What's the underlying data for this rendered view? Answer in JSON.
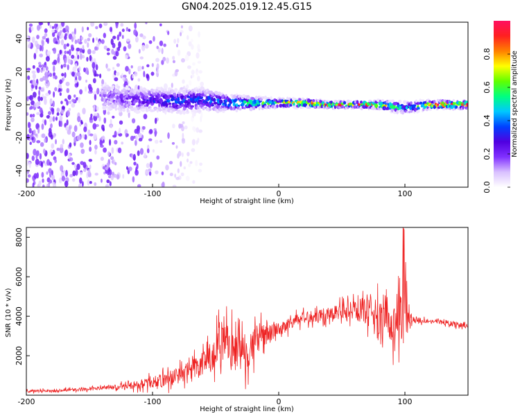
{
  "title": "GN04.2025.019.12.45.G15",
  "chart_data": [
    {
      "type": "heatmap",
      "xlabel": "Height of straight line (km)",
      "ylabel": "Frequency (Hz)",
      "xlim": [
        -200,
        150
      ],
      "ylim": [
        -50,
        50
      ],
      "xticks": [
        -200,
        -100,
        0,
        100
      ],
      "yticks": [
        -40,
        -20,
        0,
        20,
        40
      ],
      "colorbar": {
        "label": "Normalized spectral amplitude",
        "range": [
          0,
          1
        ],
        "ticks": [
          "0.0",
          "0.2",
          "0.4",
          "0.6",
          "0.8"
        ],
        "colors": [
          "#ffffff",
          "#d9c0ff",
          "#8030ff",
          "#5000e0",
          "#0040ff",
          "#00c8ff",
          "#00ff80",
          "#60ff00",
          "#ffff00",
          "#ff8000",
          "#ff2020",
          "#ff1060"
        ]
      },
      "ridge": {
        "x": [
          -140,
          -120,
          -100,
          -80,
          -60,
          -40,
          -20,
          0,
          20,
          40,
          60,
          80,
          100,
          120,
          150
        ],
        "center_hz": [
          5,
          3,
          3,
          2,
          3,
          1,
          1,
          1,
          1,
          0,
          0,
          0,
          -2,
          0,
          0
        ],
        "half_width_hz": [
          8,
          7,
          6,
          6,
          6,
          4,
          3,
          2,
          2,
          1.5,
          1.5,
          2,
          3,
          2,
          2
        ],
        "amplitude": [
          0.15,
          0.2,
          0.3,
          0.35,
          0.35,
          0.45,
          0.6,
          0.7,
          0.8,
          0.9,
          0.85,
          0.85,
          0.4,
          0.8,
          0.95
        ]
      },
      "noise_region_x": [
        -200,
        -100
      ]
    },
    {
      "type": "line",
      "xlabel": "Height of straight line (km)",
      "ylabel": "SNR (10 * v/v)",
      "xlim": [
        -200,
        150
      ],
      "ylim": [
        0,
        8500
      ],
      "xticks": [
        -200,
        -100,
        0,
        100
      ],
      "yticks": [
        2000,
        4000,
        6000,
        8000
      ],
      "color": "#ee2222",
      "series": [
        {
          "x": [
            -200,
            -180,
            -160,
            -140,
            -120,
            -100,
            -90,
            -80,
            -70,
            -60,
            -50,
            -45,
            -40,
            -35,
            -30,
            -25,
            -20,
            -15,
            -10,
            -5,
            0,
            10,
            20,
            30,
            40,
            50,
            60,
            70,
            75,
            80,
            85,
            90,
            95,
            98,
            100,
            102,
            105,
            110,
            120,
            130,
            140,
            150
          ],
          "values": [
            200,
            230,
            280,
            350,
            450,
            650,
            800,
            1000,
            1300,
            1600,
            2000,
            2400,
            2500,
            2200,
            2100,
            2300,
            2600,
            2900,
            3100,
            3200,
            3300,
            3700,
            3900,
            4050,
            4150,
            4250,
            4300,
            4300,
            4350,
            3500,
            4500,
            3300,
            4200,
            4500,
            5000,
            3800,
            3900,
            3800,
            3750,
            3700,
            3600,
            3500
          ],
          "noise_amplitude": [
            80,
            80,
            100,
            120,
            200,
            350,
            450,
            550,
            650,
            800,
            1200,
            1500,
            1500,
            1200,
            1300,
            1200,
            1000,
            800,
            700,
            500,
            450,
            400,
            400,
            400,
            450,
            500,
            600,
            900,
            1100,
            1400,
            1300,
            1200,
            1700,
            3000,
            3500,
            900,
            300,
            180,
            150,
            150,
            150,
            150
          ]
        }
      ]
    }
  ]
}
